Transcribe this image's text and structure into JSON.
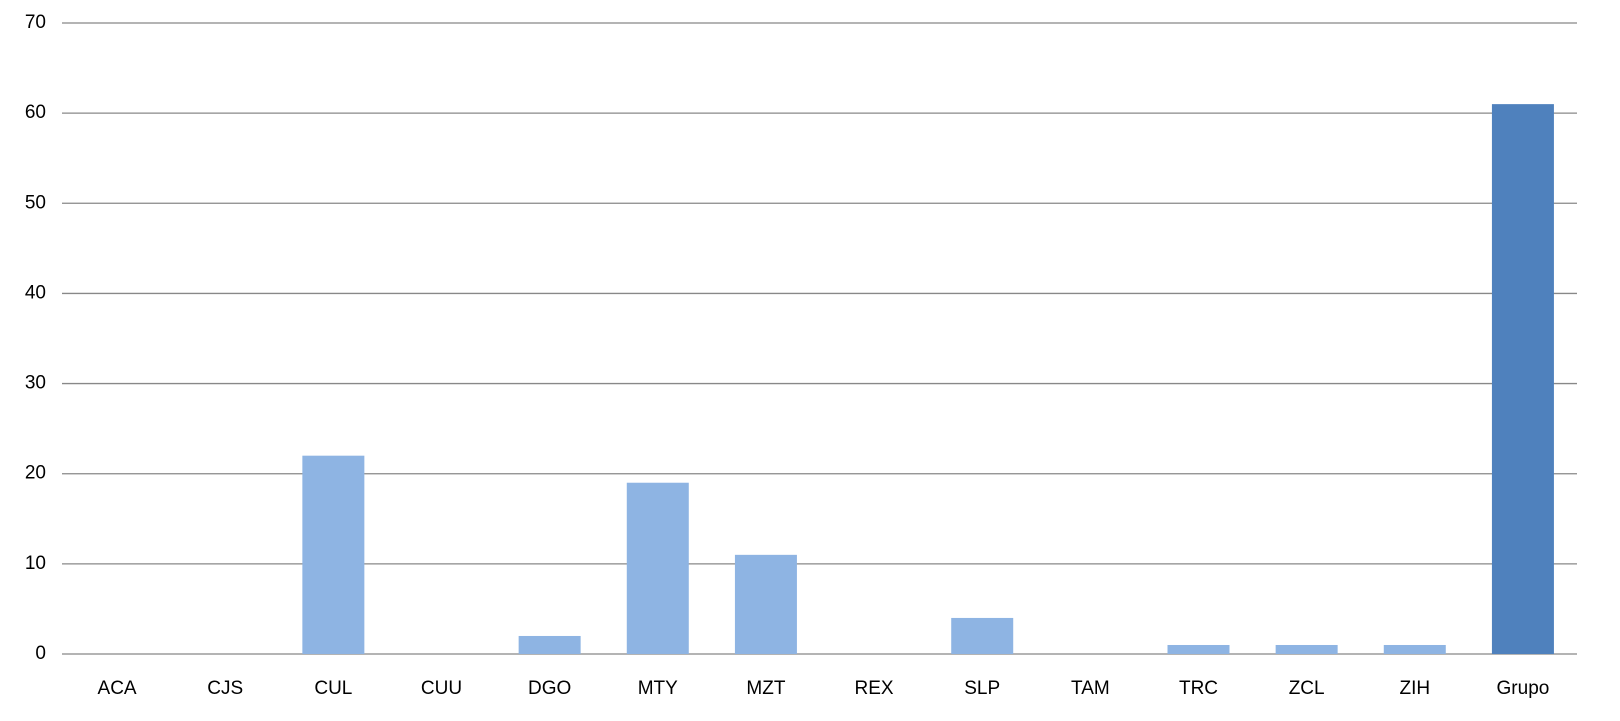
{
  "chart_data": {
    "type": "bar",
    "categories": [
      "ACA",
      "CJS",
      "CUL",
      "CUU",
      "DGO",
      "MTY",
      "MZT",
      "REX",
      "SLP",
      "TAM",
      "TRC",
      "ZCL",
      "ZIH",
      "Grupo"
    ],
    "values": [
      0,
      0,
      22,
      0,
      2,
      19,
      11,
      0,
      4,
      0,
      1,
      1,
      1,
      61
    ],
    "colors": [
      "#8eb4e3",
      "#8eb4e3",
      "#8eb4e3",
      "#8eb4e3",
      "#8eb4e3",
      "#8eb4e3",
      "#8eb4e3",
      "#8eb4e3",
      "#8eb4e3",
      "#8eb4e3",
      "#8eb4e3",
      "#8eb4e3",
      "#8eb4e3",
      "#4f81bd"
    ],
    "ylim": [
      0,
      70
    ],
    "yticks": [
      0,
      10,
      20,
      30,
      40,
      50,
      60,
      70
    ],
    "grid": true
  }
}
